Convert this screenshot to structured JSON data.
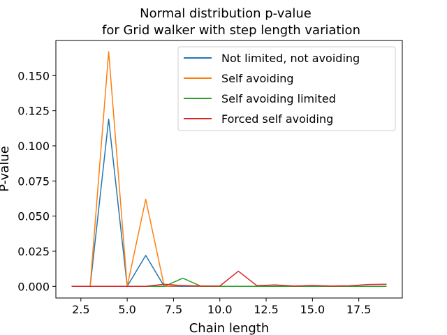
{
  "chart_data": {
    "type": "line",
    "title_lines": [
      "Normal distribution p-value",
      "for Grid walker with step length variation"
    ],
    "xlabel": "Chain length",
    "ylabel": "P-value",
    "xlim": [
      1.15,
      19.85
    ],
    "ylim": [
      -0.0083,
      0.175
    ],
    "x_ticks": [
      2.5,
      5.0,
      7.5,
      10.0,
      12.5,
      15.0,
      17.5
    ],
    "x_tick_labels": [
      "2.5",
      "5.0",
      "7.5",
      "10.0",
      "12.5",
      "15.0",
      "17.5"
    ],
    "y_ticks": [
      0.0,
      0.025,
      0.05,
      0.075,
      0.1,
      0.125,
      0.15
    ],
    "y_tick_labels": [
      "0.000",
      "0.025",
      "0.050",
      "0.075",
      "0.100",
      "0.125",
      "0.150"
    ],
    "grid": false,
    "legend_position": "top-right",
    "x": [
      2,
      3,
      4,
      5,
      6,
      7,
      8,
      9,
      10,
      11,
      12,
      13,
      14,
      15,
      16,
      17,
      18,
      19
    ],
    "series": [
      {
        "name": "Not limited, not avoiding",
        "color": "#1f77b4",
        "values": [
          0,
          0,
          0.119,
          0,
          0.022,
          0,
          0,
          0,
          0,
          0,
          0,
          0,
          0,
          0,
          0,
          0,
          0,
          0
        ]
      },
      {
        "name": "Self avoiding",
        "color": "#ff7f0e",
        "values": [
          0,
          0,
          0.167,
          0,
          0.062,
          0,
          0.0005,
          0,
          0,
          0,
          0,
          0,
          0,
          0,
          0,
          0,
          0,
          0
        ]
      },
      {
        "name": "Self avoiding limited",
        "color": "#2ca02c",
        "values": [
          0,
          0,
          0,
          0,
          0,
          0,
          0.0058,
          0,
          0,
          0,
          0,
          0,
          0,
          0,
          0,
          0,
          0,
          0
        ]
      },
      {
        "name": "Forced self avoiding",
        "color": "#d62728",
        "values": [
          0,
          0,
          0,
          0,
          0,
          0.0015,
          0.0005,
          0.0002,
          0.0002,
          0.0108,
          0.0005,
          0.001,
          0.0002,
          0.0006,
          0.0002,
          0.0004,
          0.0013,
          0.0015
        ]
      }
    ]
  }
}
